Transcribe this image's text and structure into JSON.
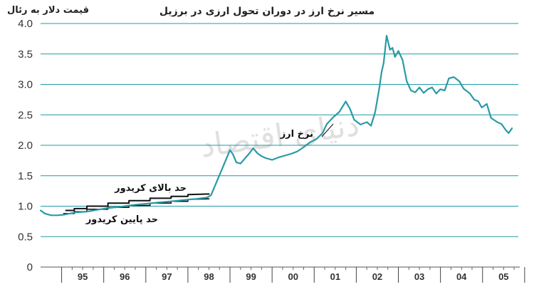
{
  "chart_data": {
    "type": "line",
    "title": "مسیر نرخ ارز در دوران تحول ارزی در برزیل",
    "ylabel": "قیمت دلار به رئال",
    "xlabel": "",
    "ylim": [
      0,
      4.0
    ],
    "xlim": [
      1994.5,
      2005.85
    ],
    "yticks": [
      "0",
      "0.5",
      "1.0",
      "1.5",
      "2.0",
      "2.5",
      "3.0",
      "3.5",
      "4.0"
    ],
    "xticks": [
      "95",
      "96",
      "97",
      "98",
      "99",
      "00",
      "01",
      "02",
      "03",
      "04",
      "05"
    ],
    "grid": true,
    "watermark": "دنیای اقتصاد",
    "colors": {
      "rate": "#2a9aa6",
      "band": "#111111",
      "grid": "#1f9ba6"
    },
    "series": [
      {
        "name": "نرخ ارز",
        "x": [
          1994.5,
          1994.6,
          1994.75,
          1994.9,
          1995.05,
          1995.2,
          1995.35,
          1995.6,
          1995.85,
          1996.1,
          1996.4,
          1996.7,
          1997.0,
          1997.3,
          1997.6,
          1997.9,
          1998.2,
          1998.45,
          1998.55,
          1999.0,
          1999.07,
          1999.15,
          1999.25,
          1999.35,
          1999.45,
          1999.55,
          1999.65,
          1999.75,
          1999.85,
          2000.0,
          2000.15,
          2000.3,
          2000.45,
          2000.6,
          2000.75,
          2000.9,
          2001.05,
          2001.2,
          2001.3,
          2001.45,
          2001.6,
          2001.75,
          2001.85,
          2001.95,
          2002.1,
          2002.25,
          2002.35,
          2002.45,
          2002.55,
          2002.6,
          2002.65,
          2002.72,
          2002.8,
          2002.86,
          2002.92,
          2003.0,
          2003.1,
          2003.2,
          2003.3,
          2003.4,
          2003.5,
          2003.6,
          2003.7,
          2003.8,
          2003.9,
          2004.0,
          2004.1,
          2004.2,
          2004.32,
          2004.45,
          2004.55,
          2004.7,
          2004.8,
          2004.9,
          2004.98,
          2005.1,
          2005.2,
          2005.35,
          2005.45,
          2005.55,
          2005.62,
          2005.7
        ],
        "values": [
          0.93,
          0.88,
          0.85,
          0.85,
          0.86,
          0.88,
          0.9,
          0.91,
          0.94,
          0.97,
          0.99,
          1.02,
          1.04,
          1.06,
          1.08,
          1.1,
          1.12,
          1.14,
          1.18,
          1.92,
          1.85,
          1.72,
          1.7,
          1.78,
          1.86,
          1.95,
          1.87,
          1.82,
          1.79,
          1.76,
          1.8,
          1.83,
          1.86,
          1.9,
          1.97,
          2.05,
          2.1,
          2.2,
          2.35,
          2.46,
          2.55,
          2.72,
          2.6,
          2.42,
          2.34,
          2.38,
          2.32,
          2.55,
          2.95,
          3.2,
          3.35,
          3.8,
          3.57,
          3.6,
          3.45,
          3.55,
          3.4,
          3.05,
          2.9,
          2.87,
          2.95,
          2.86,
          2.92,
          2.95,
          2.85,
          2.92,
          2.9,
          3.1,
          3.12,
          3.05,
          2.93,
          2.85,
          2.75,
          2.72,
          2.62,
          2.68,
          2.45,
          2.38,
          2.35,
          2.25,
          2.2,
          2.28
        ]
      },
      {
        "name": "حد بالای کریدور",
        "x": [
          1995.1,
          1995.3,
          1995.3,
          1995.6,
          1995.6,
          1996.1,
          1996.1,
          1996.6,
          1996.6,
          1997.1,
          1997.1,
          1997.6,
          1997.6,
          1998.0,
          1998.0,
          1998.5
        ],
        "values": [
          0.93,
          0.93,
          0.96,
          0.96,
          1.0,
          1.0,
          1.05,
          1.05,
          1.09,
          1.09,
          1.13,
          1.13,
          1.16,
          1.16,
          1.19,
          1.2
        ]
      },
      {
        "name": "حد پایین کریدور",
        "x": [
          1995.05,
          1995.3,
          1995.3,
          1995.6,
          1995.6,
          1996.1,
          1996.1,
          1996.6,
          1996.6,
          1997.1,
          1997.1,
          1997.6,
          1997.6,
          1998.0,
          1998.0,
          1998.5
        ],
        "values": [
          0.88,
          0.88,
          0.91,
          0.91,
          0.95,
          0.95,
          0.98,
          0.98,
          1.01,
          1.01,
          1.05,
          1.05,
          1.08,
          1.08,
          1.11,
          1.12
        ]
      }
    ],
    "labels": {
      "rate": "نرخ ارز",
      "upper": "حد بالای کریدور",
      "lower": "حد پایین کریدور"
    }
  }
}
